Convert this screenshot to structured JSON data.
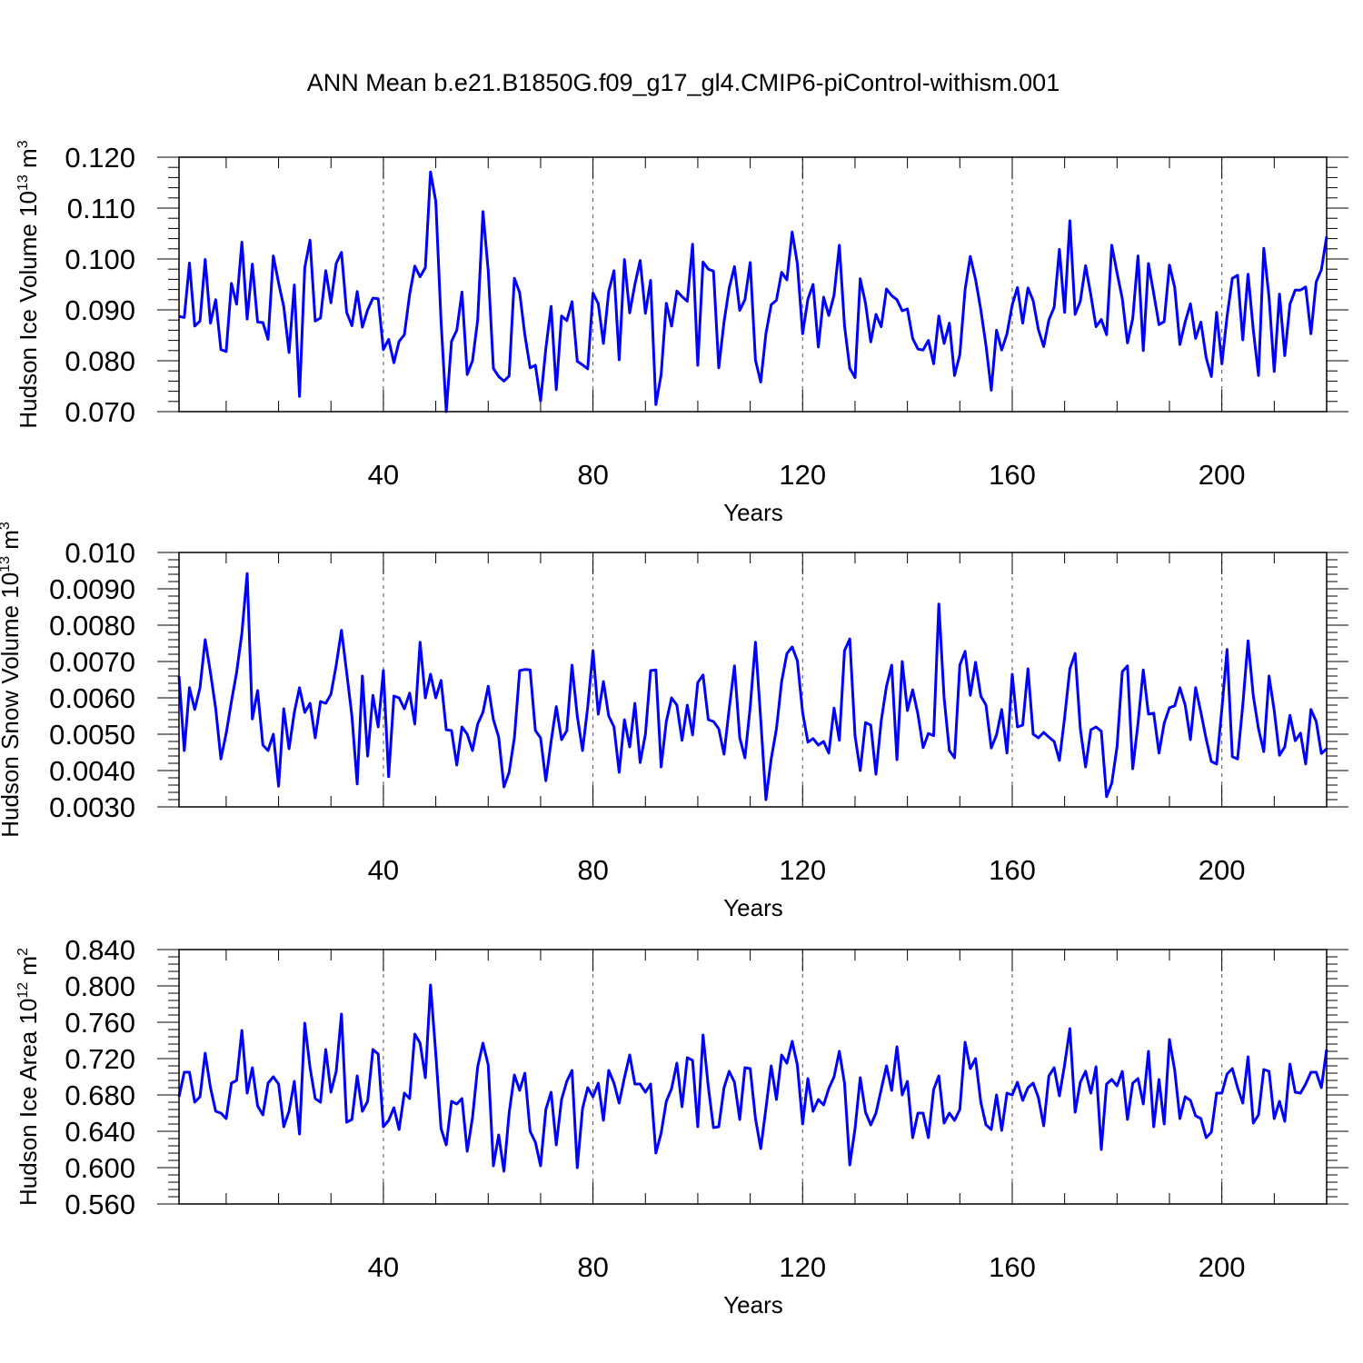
{
  "title": "ANN Mean b.e21.B1850G.f09_g17_gl4.CMIP6-piControl-withism.001",
  "colors": {
    "line": "#0000ff",
    "axis": "#000000",
    "grid": "#555555"
  },
  "chart_data": [
    {
      "type": "line",
      "title": "ANN Mean b.e21.B1850G.f09_g17_gl4.CMIP6-piControl-withism.001",
      "ylabel_main": "Hudson Ice Volume 10",
      "ylabel_exp": "13",
      "ylabel_unit": " m",
      "ylabel_unit_exp": "3",
      "xlabel": "Years",
      "xlim": [
        1,
        220
      ],
      "ylim": [
        0.07,
        0.12
      ],
      "yticks": [
        "0.070",
        "0.080",
        "0.090",
        "0.100",
        "0.110",
        "0.120"
      ],
      "xticks": [
        "40",
        "80",
        "120",
        "160",
        "200"
      ],
      "grid": "vertical dashed at x ticks",
      "x_start": 1,
      "values": [
        0.0887,
        0.0885,
        0.0992,
        0.0868,
        0.0878,
        0.0999,
        0.0874,
        0.092,
        0.0822,
        0.0818,
        0.0952,
        0.0911,
        0.1033,
        0.0882,
        0.099,
        0.0876,
        0.0875,
        0.0842,
        0.1006,
        0.0953,
        0.0906,
        0.0816,
        0.0949,
        0.073,
        0.0983,
        0.1037,
        0.0878,
        0.0884,
        0.0977,
        0.0914,
        0.0991,
        0.1013,
        0.0895,
        0.0869,
        0.0936,
        0.0866,
        0.09,
        0.0923,
        0.0922,
        0.0822,
        0.0842,
        0.0796,
        0.0838,
        0.0851,
        0.093,
        0.0986,
        0.0965,
        0.0983,
        0.1171,
        0.1113,
        0.0877,
        0.07,
        0.0838,
        0.086,
        0.0935,
        0.0773,
        0.08,
        0.088,
        0.1093,
        0.0977,
        0.0785,
        0.0769,
        0.076,
        0.077,
        0.0962,
        0.0934,
        0.0851,
        0.0786,
        0.0791,
        0.0721,
        0.0824,
        0.0907,
        0.0743,
        0.0888,
        0.0879,
        0.0916,
        0.0799,
        0.0792,
        0.0784,
        0.0933,
        0.0912,
        0.0834,
        0.0936,
        0.0977,
        0.0802,
        0.0999,
        0.0894,
        0.095,
        0.0997,
        0.0893,
        0.0958,
        0.0714,
        0.0773,
        0.0913,
        0.0868,
        0.0937,
        0.0926,
        0.0917,
        0.1029,
        0.0791,
        0.0994,
        0.098,
        0.0976,
        0.0786,
        0.0876,
        0.0943,
        0.0985,
        0.0899,
        0.092,
        0.0993,
        0.0801,
        0.0758,
        0.0853,
        0.091,
        0.0919,
        0.0974,
        0.0959,
        0.1053,
        0.0991,
        0.0853,
        0.0921,
        0.095,
        0.0827,
        0.0925,
        0.0889,
        0.0929,
        0.1027,
        0.0869,
        0.0785,
        0.0767,
        0.0961,
        0.0913,
        0.0837,
        0.0891,
        0.0867,
        0.0941,
        0.0928,
        0.092,
        0.0898,
        0.0902,
        0.0844,
        0.0823,
        0.0821,
        0.084,
        0.0794,
        0.0888,
        0.0834,
        0.0874,
        0.0771,
        0.0812,
        0.094,
        0.1005,
        0.096,
        0.09,
        0.083,
        0.0742,
        0.086,
        0.0821,
        0.0853,
        0.091,
        0.0944,
        0.0874,
        0.0943,
        0.0918,
        0.0861,
        0.0828,
        0.088,
        0.0905,
        0.1019,
        0.0895,
        0.1075,
        0.0891,
        0.0917,
        0.0987,
        0.0929,
        0.0867,
        0.0881,
        0.0851,
        0.1027,
        0.0973,
        0.0922,
        0.0835,
        0.0883,
        0.1006,
        0.082,
        0.0991,
        0.0932,
        0.0871,
        0.0877,
        0.0988,
        0.0944,
        0.0832,
        0.0876,
        0.0912,
        0.0844,
        0.0876,
        0.0806,
        0.0769,
        0.0895,
        0.0794,
        0.0887,
        0.0962,
        0.0968,
        0.0841,
        0.097,
        0.086,
        0.0771,
        0.1021,
        0.0925,
        0.0779,
        0.0931,
        0.081,
        0.0911,
        0.0939,
        0.0939,
        0.0945,
        0.0853,
        0.0955,
        0.0979,
        0.1044
      ]
    },
    {
      "type": "line",
      "ylabel_main": "Hudson Snow Volume 10",
      "ylabel_exp": "13",
      "ylabel_unit": " m",
      "ylabel_unit_exp": "3",
      "xlabel": "Years",
      "xlim": [
        1,
        220
      ],
      "ylim": [
        0.003,
        0.01
      ],
      "yticks": [
        "0.0030",
        "0.0040",
        "0.0050",
        "0.0060",
        "0.0070",
        "0.0080",
        "0.0090",
        "0.010"
      ],
      "xticks": [
        "40",
        "80",
        "120",
        "160",
        "200"
      ],
      "grid": "vertical dashed at x ticks",
      "x_start": 1,
      "values": [
        0.0066,
        0.00455,
        0.00628,
        0.00568,
        0.00628,
        0.0076,
        0.0067,
        0.0057,
        0.00432,
        0.00502,
        0.0059,
        0.0067,
        0.00778,
        0.00942,
        0.00542,
        0.0062,
        0.0047,
        0.00455,
        0.005,
        0.00357,
        0.0057,
        0.0046,
        0.0056,
        0.00628,
        0.0056,
        0.00585,
        0.0049,
        0.0059,
        0.00585,
        0.0061,
        0.0069,
        0.00786,
        0.0067,
        0.0055,
        0.00363,
        0.0066,
        0.0044,
        0.00607,
        0.0052,
        0.00675,
        0.00383,
        0.00605,
        0.006,
        0.0057,
        0.00613,
        0.00528,
        0.00753,
        0.006,
        0.00665,
        0.006,
        0.00648,
        0.00512,
        0.0051,
        0.00415,
        0.0052,
        0.005,
        0.00455,
        0.00528,
        0.0056,
        0.00632,
        0.0054,
        0.00492,
        0.00355,
        0.00395,
        0.0049,
        0.00675,
        0.00678,
        0.00677,
        0.0051,
        0.0049,
        0.00372,
        0.0048,
        0.00576,
        0.00485,
        0.0051,
        0.0069,
        0.0055,
        0.00455,
        0.00575,
        0.0073,
        0.00555,
        0.00645,
        0.0055,
        0.0052,
        0.00395,
        0.0054,
        0.00465,
        0.00585,
        0.00422,
        0.005,
        0.00675,
        0.00677,
        0.0041,
        0.00535,
        0.006,
        0.0058,
        0.00483,
        0.0058,
        0.00498,
        0.00642,
        0.00663,
        0.0054,
        0.00535,
        0.00515,
        0.00445,
        0.0057,
        0.00688,
        0.0049,
        0.00435,
        0.00575,
        0.00753,
        0.0054,
        0.0032,
        0.00432,
        0.00515,
        0.00645,
        0.00722,
        0.0074,
        0.00702,
        0.0056,
        0.00478,
        0.00488,
        0.0047,
        0.0048,
        0.00448,
        0.00572,
        0.00483,
        0.0073,
        0.00762,
        0.00495,
        0.004,
        0.00532,
        0.00525,
        0.0039,
        0.00537,
        0.00632,
        0.0069,
        0.0043,
        0.007,
        0.00565,
        0.00622,
        0.00555,
        0.00463,
        0.00502,
        0.00496,
        0.00858,
        0.006,
        0.00455,
        0.00435,
        0.0069,
        0.00728,
        0.00607,
        0.00698,
        0.00605,
        0.0058,
        0.00462,
        0.00498,
        0.00568,
        0.00448,
        0.00665,
        0.0052,
        0.00525,
        0.0068,
        0.005,
        0.0049,
        0.00505,
        0.00492,
        0.0048,
        0.00428,
        0.00545,
        0.0068,
        0.00722,
        0.00515,
        0.0041,
        0.00512,
        0.0052,
        0.00508,
        0.00328,
        0.00365,
        0.00465,
        0.00672,
        0.00688,
        0.00405,
        0.0053,
        0.00677,
        0.00555,
        0.00558,
        0.00448,
        0.0053,
        0.00573,
        0.00578,
        0.00628,
        0.0058,
        0.00485,
        0.00628,
        0.0056,
        0.00487,
        0.00425,
        0.00418,
        0.0057,
        0.00733,
        0.00438,
        0.00432,
        0.0058,
        0.00757,
        0.00605,
        0.00515,
        0.00452,
        0.0066,
        0.00565,
        0.00442,
        0.00465,
        0.00552,
        0.00482,
        0.00503,
        0.00418,
        0.00568,
        0.00535,
        0.00447,
        0.0046
      ]
    },
    {
      "type": "line",
      "ylabel_main": "Hudson Ice Area 10",
      "ylabel_exp": "12",
      "ylabel_unit": " m",
      "ylabel_unit_exp": "2",
      "xlabel": "Years",
      "xlim": [
        1,
        220
      ],
      "ylim": [
        0.56,
        0.84
      ],
      "yticks": [
        "0.560",
        "0.600",
        "0.640",
        "0.680",
        "0.720",
        "0.760",
        "0.800",
        "0.840"
      ],
      "xticks": [
        "40",
        "80",
        "120",
        "160",
        "200"
      ],
      "grid": "vertical dashed at x ticks",
      "x_start": 1,
      "values": [
        0.678,
        0.705,
        0.705,
        0.672,
        0.678,
        0.726,
        0.688,
        0.662,
        0.66,
        0.654,
        0.693,
        0.696,
        0.751,
        0.682,
        0.71,
        0.668,
        0.658,
        0.693,
        0.7,
        0.692,
        0.645,
        0.662,
        0.695,
        0.637,
        0.759,
        0.71,
        0.676,
        0.672,
        0.73,
        0.683,
        0.706,
        0.769,
        0.65,
        0.653,
        0.701,
        0.662,
        0.673,
        0.73,
        0.725,
        0.645,
        0.652,
        0.666,
        0.642,
        0.682,
        0.676,
        0.747,
        0.737,
        0.699,
        0.801,
        0.725,
        0.643,
        0.625,
        0.673,
        0.67,
        0.676,
        0.618,
        0.655,
        0.711,
        0.737,
        0.713,
        0.602,
        0.636,
        0.596,
        0.66,
        0.702,
        0.685,
        0.704,
        0.64,
        0.628,
        0.602,
        0.664,
        0.683,
        0.625,
        0.675,
        0.695,
        0.707,
        0.6,
        0.665,
        0.688,
        0.678,
        0.693,
        0.652,
        0.707,
        0.693,
        0.671,
        0.699,
        0.724,
        0.692,
        0.692,
        0.683,
        0.692,
        0.616,
        0.638,
        0.673,
        0.687,
        0.715,
        0.667,
        0.721,
        0.718,
        0.645,
        0.746,
        0.689,
        0.644,
        0.645,
        0.688,
        0.706,
        0.694,
        0.653,
        0.71,
        0.709,
        0.654,
        0.621,
        0.665,
        0.712,
        0.675,
        0.724,
        0.715,
        0.739,
        0.713,
        0.648,
        0.698,
        0.662,
        0.675,
        0.669,
        0.687,
        0.7,
        0.728,
        0.693,
        0.603,
        0.643,
        0.699,
        0.661,
        0.647,
        0.66,
        0.686,
        0.712,
        0.685,
        0.733,
        0.68,
        0.695,
        0.633,
        0.66,
        0.66,
        0.633,
        0.686,
        0.701,
        0.649,
        0.66,
        0.652,
        0.664,
        0.738,
        0.709,
        0.72,
        0.672,
        0.647,
        0.642,
        0.68,
        0.641,
        0.682,
        0.68,
        0.694,
        0.674,
        0.688,
        0.693,
        0.677,
        0.646,
        0.701,
        0.71,
        0.679,
        0.713,
        0.753,
        0.661,
        0.694,
        0.706,
        0.682,
        0.711,
        0.62,
        0.692,
        0.697,
        0.69,
        0.706,
        0.653,
        0.693,
        0.698,
        0.67,
        0.728,
        0.645,
        0.697,
        0.648,
        0.741,
        0.707,
        0.654,
        0.678,
        0.674,
        0.657,
        0.654,
        0.633,
        0.639,
        0.682,
        0.682,
        0.703,
        0.709,
        0.688,
        0.671,
        0.722,
        0.649,
        0.658,
        0.708,
        0.706,
        0.654,
        0.673,
        0.651,
        0.714,
        0.683,
        0.682,
        0.692,
        0.705,
        0.705,
        0.688,
        0.73
      ]
    }
  ]
}
